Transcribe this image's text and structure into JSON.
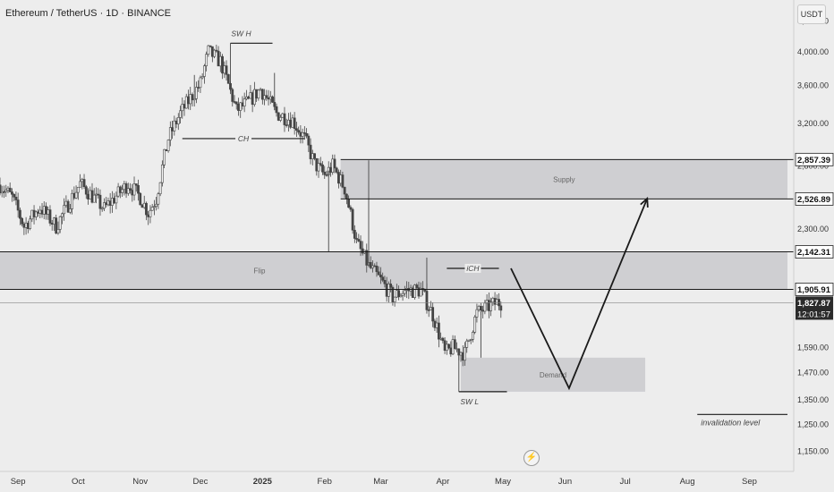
{
  "header": {
    "title": "Ethereum / TetherUS · 1D · BINANCE"
  },
  "controls": {
    "currency": "USDT",
    "timezone_icon": "bolt-icon"
  },
  "colors": {
    "background": "#ededed",
    "candle_up": "#454545",
    "candle_down": "#454545",
    "zone_fill": "#c9c9cd",
    "price_box_bg": "#ffffff",
    "current_box_bg": "#2b2b2b",
    "line": "#1a1a1a"
  },
  "chart_data": {
    "type": "candlestick",
    "title": "Ethereum / TetherUS · 1D · BINANCE",
    "y_scale": "log",
    "ylim": [
      1080,
      4700
    ],
    "y_ticks": [
      {
        "value": 4400,
        "label": "4,400.00"
      },
      {
        "value": 4000,
        "label": "4,000.00"
      },
      {
        "value": 3600,
        "label": "3,600.00"
      },
      {
        "value": 3200,
        "label": "3,200.00"
      },
      {
        "value": 2800,
        "label": "2,800.00"
      },
      {
        "value": 2300,
        "label": "2,300.00"
      },
      {
        "value": 2142,
        "label": "2,142.31"
      },
      {
        "value": 1590,
        "label": "1,590.00"
      },
      {
        "value": 1470,
        "label": "1,470.00"
      },
      {
        "value": 1350,
        "label": "1,350.00"
      },
      {
        "value": 1250,
        "label": "1,250.00"
      },
      {
        "value": 1150,
        "label": "1,150.00"
      }
    ],
    "x_domain": [
      "2024-08-23",
      "2025-09-20"
    ],
    "x_ticks": [
      {
        "date": "2024-09-01",
        "label": "Sep",
        "bold": false
      },
      {
        "date": "2024-10-01",
        "label": "Oct",
        "bold": false
      },
      {
        "date": "2024-11-01",
        "label": "Nov",
        "bold": false
      },
      {
        "date": "2024-12-01",
        "label": "Dec",
        "bold": false
      },
      {
        "date": "2025-01-01",
        "label": "2025",
        "bold": true
      },
      {
        "date": "2025-02-01",
        "label": "Feb",
        "bold": false
      },
      {
        "date": "2025-03-01",
        "label": "Mar",
        "bold": false
      },
      {
        "date": "2025-04-01",
        "label": "Apr",
        "bold": false
      },
      {
        "date": "2025-05-01",
        "label": "May",
        "bold": false
      },
      {
        "date": "2025-06-01",
        "label": "Jun",
        "bold": false
      },
      {
        "date": "2025-07-01",
        "label": "Jul",
        "bold": false
      },
      {
        "date": "2025-08-01",
        "label": "Aug",
        "bold": false
      },
      {
        "date": "2025-09-01",
        "label": "Sep",
        "bold": false
      }
    ],
    "price_series": {
      "start": "2024-08-23",
      "days": 250,
      "anchors": [
        [
          0,
          2640
        ],
        [
          6,
          2540
        ],
        [
          12,
          2320
        ],
        [
          20,
          2460
        ],
        [
          28,
          2320
        ],
        [
          40,
          2650
        ],
        [
          52,
          2450
        ],
        [
          64,
          2650
        ],
        [
          70,
          2540
        ],
        [
          74,
          2420
        ],
        [
          78,
          2530
        ],
        [
          84,
          3050
        ],
        [
          90,
          3300
        ],
        [
          100,
          3620
        ],
        [
          104,
          4000
        ],
        [
          110,
          3880
        ],
        [
          118,
          3330
        ],
        [
          124,
          3420
        ],
        [
          130,
          3560
        ],
        [
          138,
          3300
        ],
        [
          146,
          3230
        ],
        [
          152,
          3050
        ],
        [
          157,
          2820
        ],
        [
          162,
          2720
        ],
        [
          166,
          2800
        ],
        [
          172,
          2610
        ],
        [
          178,
          2200
        ],
        [
          184,
          2050
        ],
        [
          190,
          1960
        ],
        [
          196,
          1860
        ],
        [
          202,
          1900
        ],
        [
          210,
          1900
        ],
        [
          216,
          1760
        ],
        [
          222,
          1560
        ],
        [
          226,
          1590
        ],
        [
          232,
          1560
        ],
        [
          238,
          1770
        ],
        [
          248,
          1830
        ],
        [
          250,
          1828
        ]
      ]
    },
    "wicks": [
      {
        "date": "2024-11-28",
        "high": 3720
      },
      {
        "date": "2024-12-16",
        "high": 4107
      },
      {
        "date": "2025-01-07",
        "high": 3744
      },
      {
        "date": "2025-02-03",
        "low": 2140
      },
      {
        "date": "2025-02-23",
        "high": 2850
      },
      {
        "date": "2025-03-24",
        "high": 2104
      },
      {
        "date": "2025-04-09",
        "low": 1385
      },
      {
        "date": "2025-04-20",
        "low": 1540
      }
    ],
    "zones": [
      {
        "label": "Supply",
        "from": "2025-02-09",
        "to": "2025-09-20",
        "top": 2857.39,
        "bottom": 2526.89
      },
      {
        "label": "Flip",
        "from": "2024-08-23",
        "to": "2025-09-20",
        "top": 2142.31,
        "bottom": 1905.91
      },
      {
        "label": "Demand",
        "from": "2025-04-10",
        "to": "2025-07-11",
        "top": 1540,
        "bottom": 1385
      }
    ],
    "levels": [
      {
        "value": 2857.39,
        "label": "2,857.39",
        "from": "2025-02-09"
      },
      {
        "value": 2526.89,
        "label": "2,526.89",
        "from": "2025-02-09"
      },
      {
        "value": 2142.31,
        "label": "2,142.31",
        "from": "2024-08-23"
      },
      {
        "value": 1905.91,
        "label": "1,905.91",
        "from": "2024-08-23"
      }
    ],
    "current_price": {
      "value": 1827.87,
      "label": "1,827.87",
      "countdown": "12:01:57"
    },
    "structure_lines": [
      {
        "label": "SW H",
        "from": "2024-12-16",
        "to": "2025-01-06",
        "value": 4107,
        "label_pos": "above"
      },
      {
        "label": "CH",
        "from": "2024-11-22",
        "to": "2025-01-22",
        "value": 3050,
        "label_pos": "center"
      },
      {
        "label": "iCH",
        "from": "2025-04-03",
        "to": "2025-04-29",
        "value": 2035,
        "label_pos": "center"
      },
      {
        "label": "SW L",
        "from": "2025-04-09",
        "to": "2025-05-03",
        "value": 1385,
        "label_pos": "below"
      }
    ],
    "projection": [
      {
        "date": "2025-05-05",
        "value": 2035
      },
      {
        "date": "2025-06-03",
        "value": 1400
      },
      {
        "date": "2025-07-12",
        "value": 2530
      }
    ],
    "invalidation": {
      "label": "invalidation level",
      "from": "2025-08-06",
      "to": "2025-09-20",
      "value": 1290
    }
  }
}
